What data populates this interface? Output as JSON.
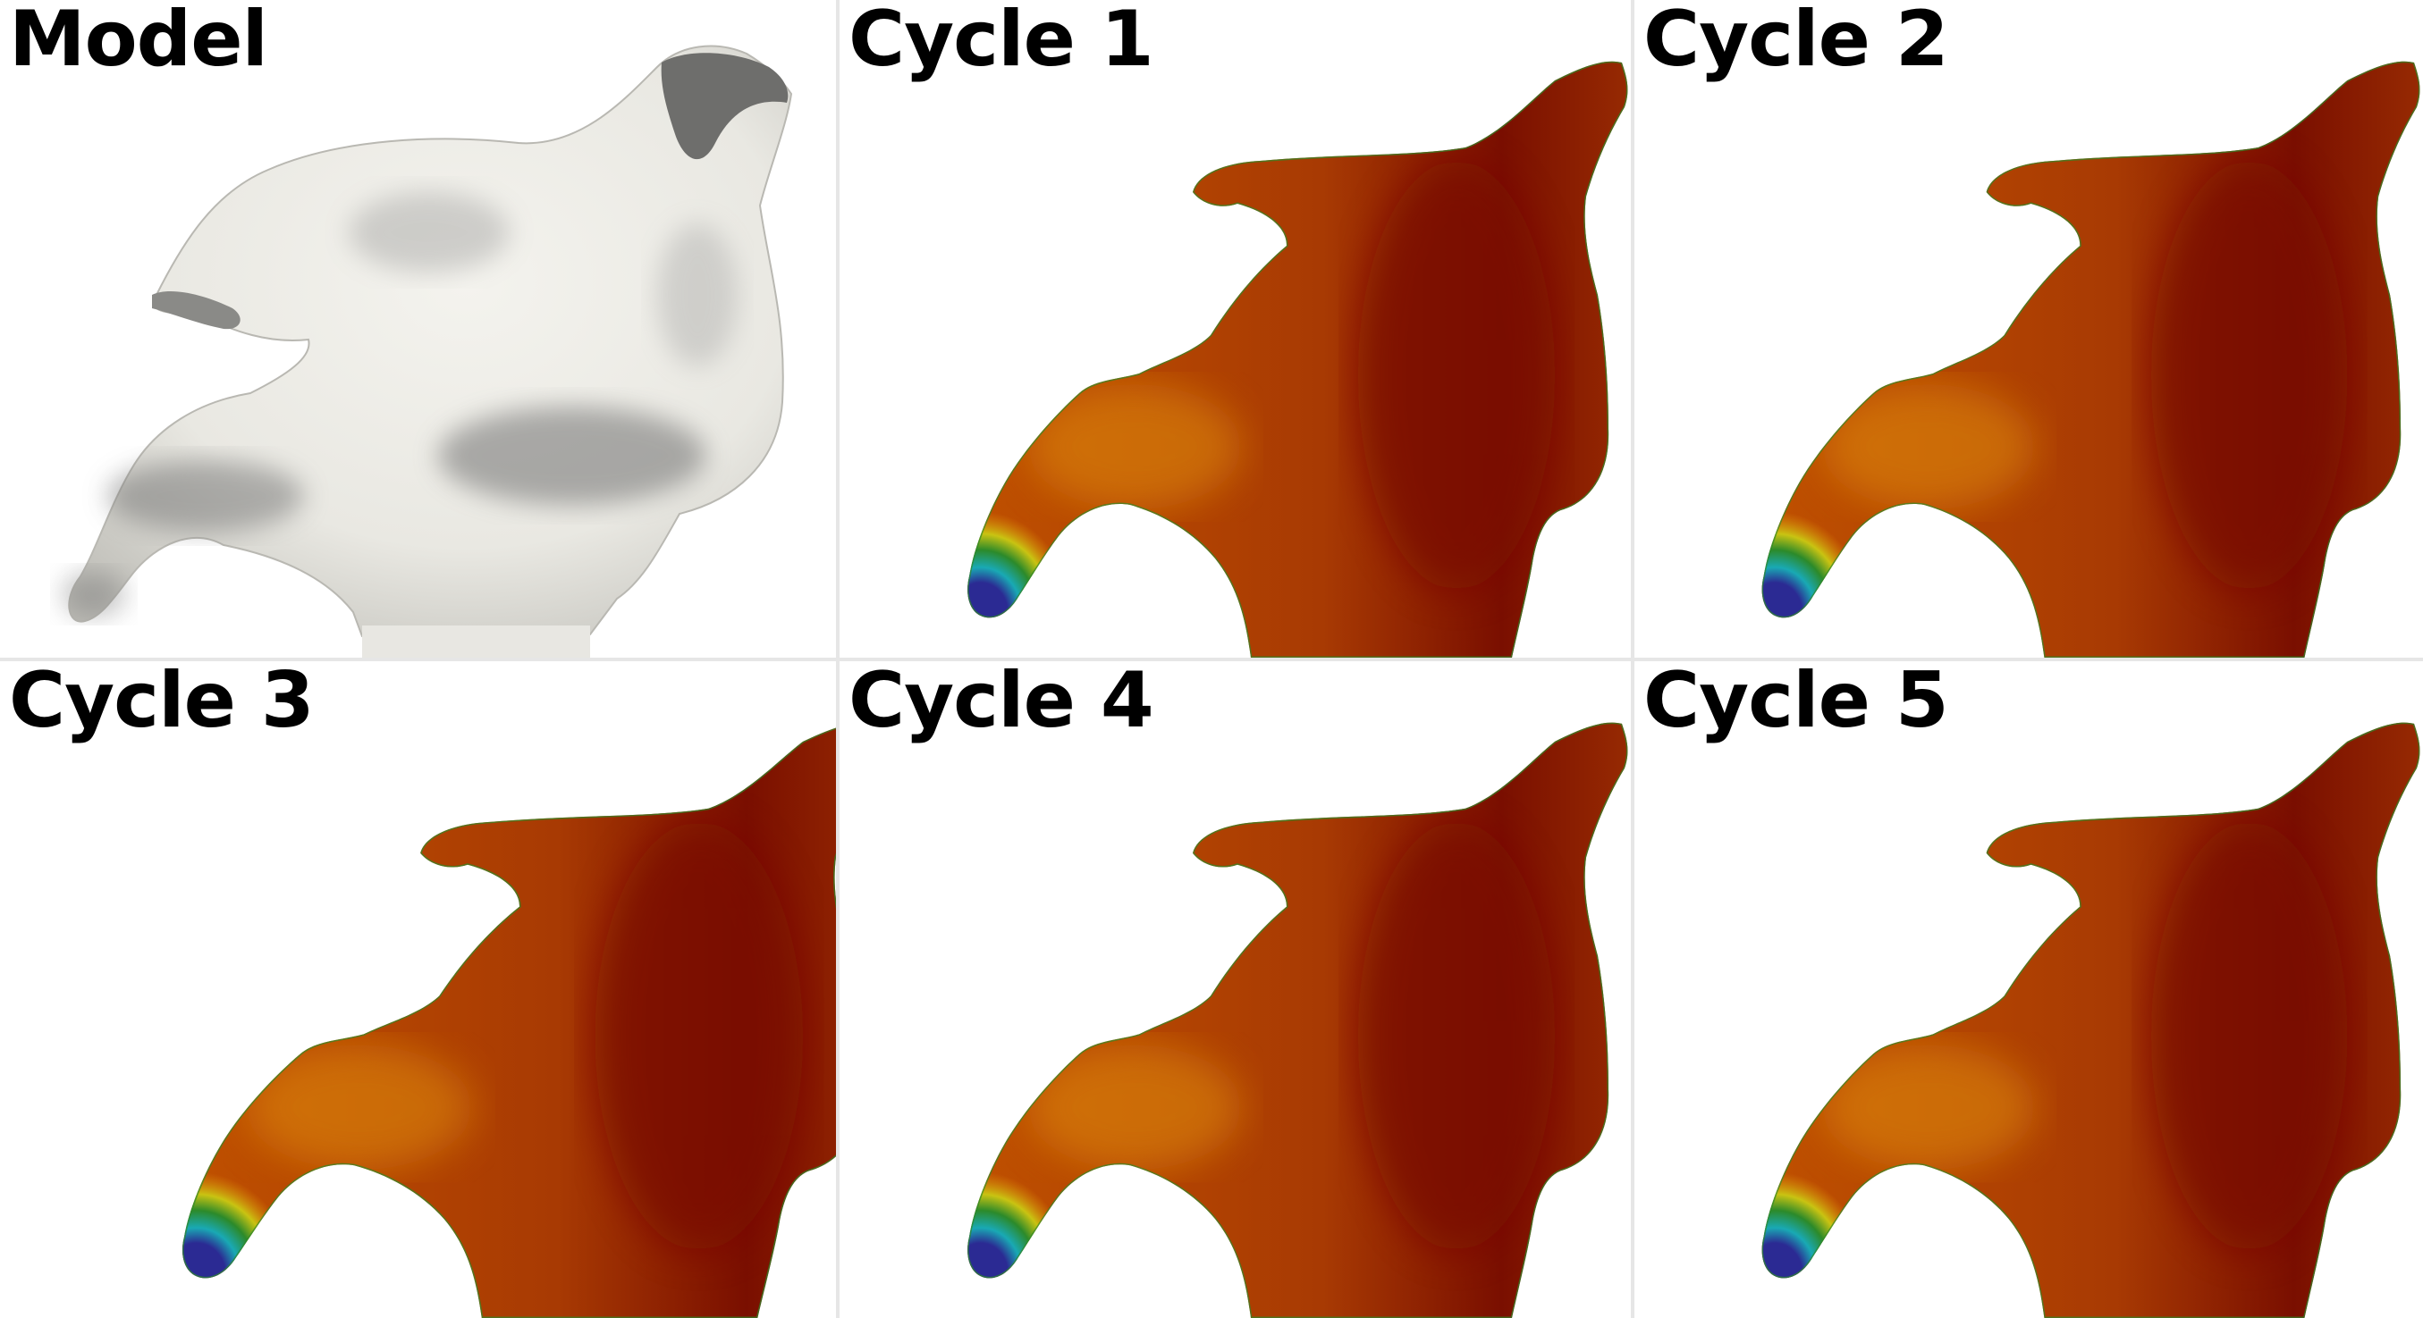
{
  "panels": [
    {
      "label": "Model",
      "kind": "model"
    },
    {
      "label": "Cycle 1",
      "kind": "field",
      "variant": 1
    },
    {
      "label": "Cycle 2",
      "kind": "field",
      "variant": 2
    },
    {
      "label": "Cycle 3",
      "kind": "field",
      "variant": 3
    },
    {
      "label": "Cycle 4",
      "kind": "field",
      "variant": 4
    },
    {
      "label": "Cycle 5",
      "kind": "field",
      "variant": 5
    }
  ],
  "colors": {
    "background": "#ffffff",
    "divider": "#e6e6e6",
    "model_surface": "#efeee9",
    "model_shadow": "#6f6f6f",
    "field_high": "#7a0f00",
    "field_mid": "#c25300",
    "field_orange": "#e08c0a",
    "field_yellow": "#c9c312",
    "field_green": "#2c8a2a",
    "field_cyan": "#19a9b4",
    "field_low": "#2b2a93"
  }
}
